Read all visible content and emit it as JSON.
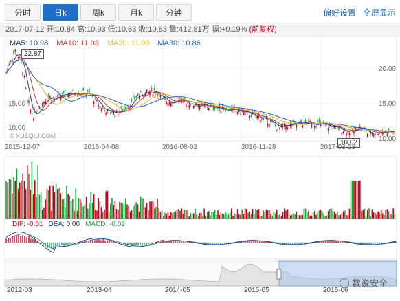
{
  "tabs": [
    {
      "label": "分时"
    },
    {
      "label": "日k"
    },
    {
      "label": "周k"
    },
    {
      "label": "月k"
    },
    {
      "label": "分钟"
    }
  ],
  "active_tab": "日k",
  "top_links": {
    "settings": "偏好设置",
    "fullscreen": "全屏显示"
  },
  "info": {
    "date": "2017-07-12",
    "open_label": "开:",
    "open": "10.84",
    "high_label": "高:",
    "high": "10.93",
    "low_label": "低:",
    "low": "10.63",
    "close_label": "收:",
    "close": "10.83",
    "volume_label": "量:",
    "volume": "412.81万",
    "change_label": "幅:",
    "change": "+0.19%",
    "adjust": "(前复权)"
  },
  "ma": {
    "ma5": "MA5: 10.98",
    "ma10": "MA10: 11.03",
    "ma20": "MA20: 11.00",
    "ma30": "MA30: 10.86"
  },
  "colors": {
    "up": "#d0021b",
    "down": "#1aa33a",
    "ma5": "#1b3f8f",
    "ma10": "#c0392b",
    "ma20": "#f0b429",
    "ma30": "#1a63c6",
    "accent": "#1e6fc7"
  },
  "price_axis": {
    "ticks": [
      "20.00",
      "15.00",
      "10.00"
    ]
  },
  "price_axis_left": {
    "ticks": [
      "15.00",
      "10.00"
    ]
  },
  "high_badge": "22.87",
  "low_badge": "10.02",
  "watermark": "© XUEQIU.COM",
  "date_axis": [
    "2015-12-07",
    "2016-04-08",
    "2016-08-02",
    "2016-11-28",
    "2017-03-23"
  ],
  "macd": {
    "dif": "DIF: -0.01",
    "dea": "DEA: 0.00",
    "macd": "MACD: -0.02"
  },
  "navigator_axis": [
    "2012-03",
    "2013-04",
    "2014-05",
    "2015-05",
    "2016-06"
  ],
  "brand": "数说安全"
}
